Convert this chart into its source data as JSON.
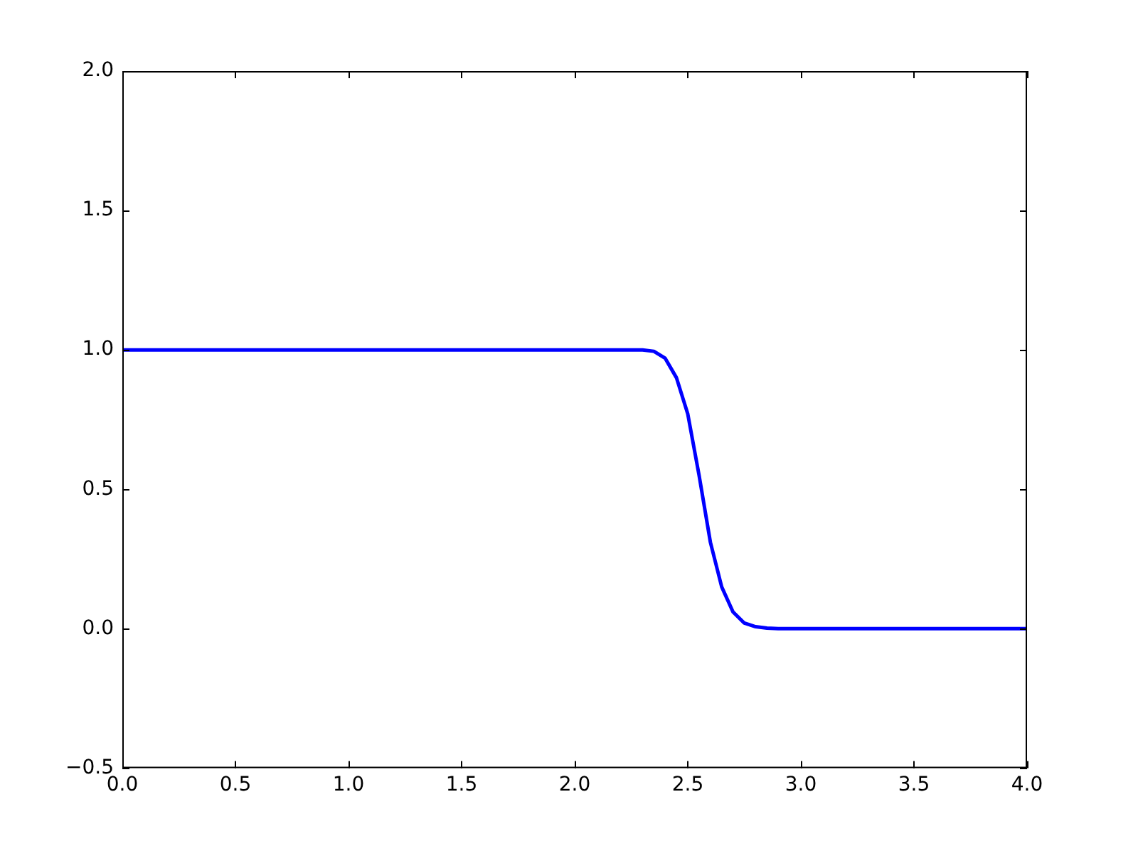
{
  "chart_data": {
    "type": "line",
    "x": [
      0,
      0.5,
      1,
      1.5,
      2,
      2.3,
      2.35,
      2.4,
      2.45,
      2.5,
      2.55,
      2.6,
      2.65,
      2.7,
      2.75,
      2.8,
      2.85,
      2.9,
      3,
      3.5,
      4
    ],
    "series": [
      {
        "color": "#0000ff",
        "values": [
          1,
          1,
          1,
          1,
          1,
          1,
          0.995,
          0.97,
          0.9,
          0.77,
          0.55,
          0.31,
          0.15,
          0.06,
          0.02,
          0.007,
          0.002,
          0,
          0,
          0,
          0
        ]
      }
    ],
    "xlim": [
      0,
      4
    ],
    "xticks": [
      {
        "value": 0,
        "label": "0.0"
      },
      {
        "value": 0.5,
        "label": "0.5"
      },
      {
        "value": 1,
        "label": "1.0"
      },
      {
        "value": 1.5,
        "label": "1.5"
      },
      {
        "value": 2,
        "label": "2.0"
      },
      {
        "value": 2.5,
        "label": "2.5"
      },
      {
        "value": 3,
        "label": "3.0"
      },
      {
        "value": 3.5,
        "label": "3.5"
      },
      {
        "value": 4,
        "label": "4.0"
      }
    ],
    "ylim": [
      -0.5,
      2
    ],
    "yticks": [
      {
        "value": -0.5,
        "label": "−0.5"
      },
      {
        "value": 0,
        "label": "0.0"
      },
      {
        "value": 0.5,
        "label": "0.5"
      },
      {
        "value": 1,
        "label": "1.0"
      },
      {
        "value": 1.5,
        "label": "1.5"
      },
      {
        "value": 2,
        "label": "2.0"
      }
    ],
    "grid": false,
    "legend": false,
    "marker": "none",
    "line_style": "solid"
  }
}
